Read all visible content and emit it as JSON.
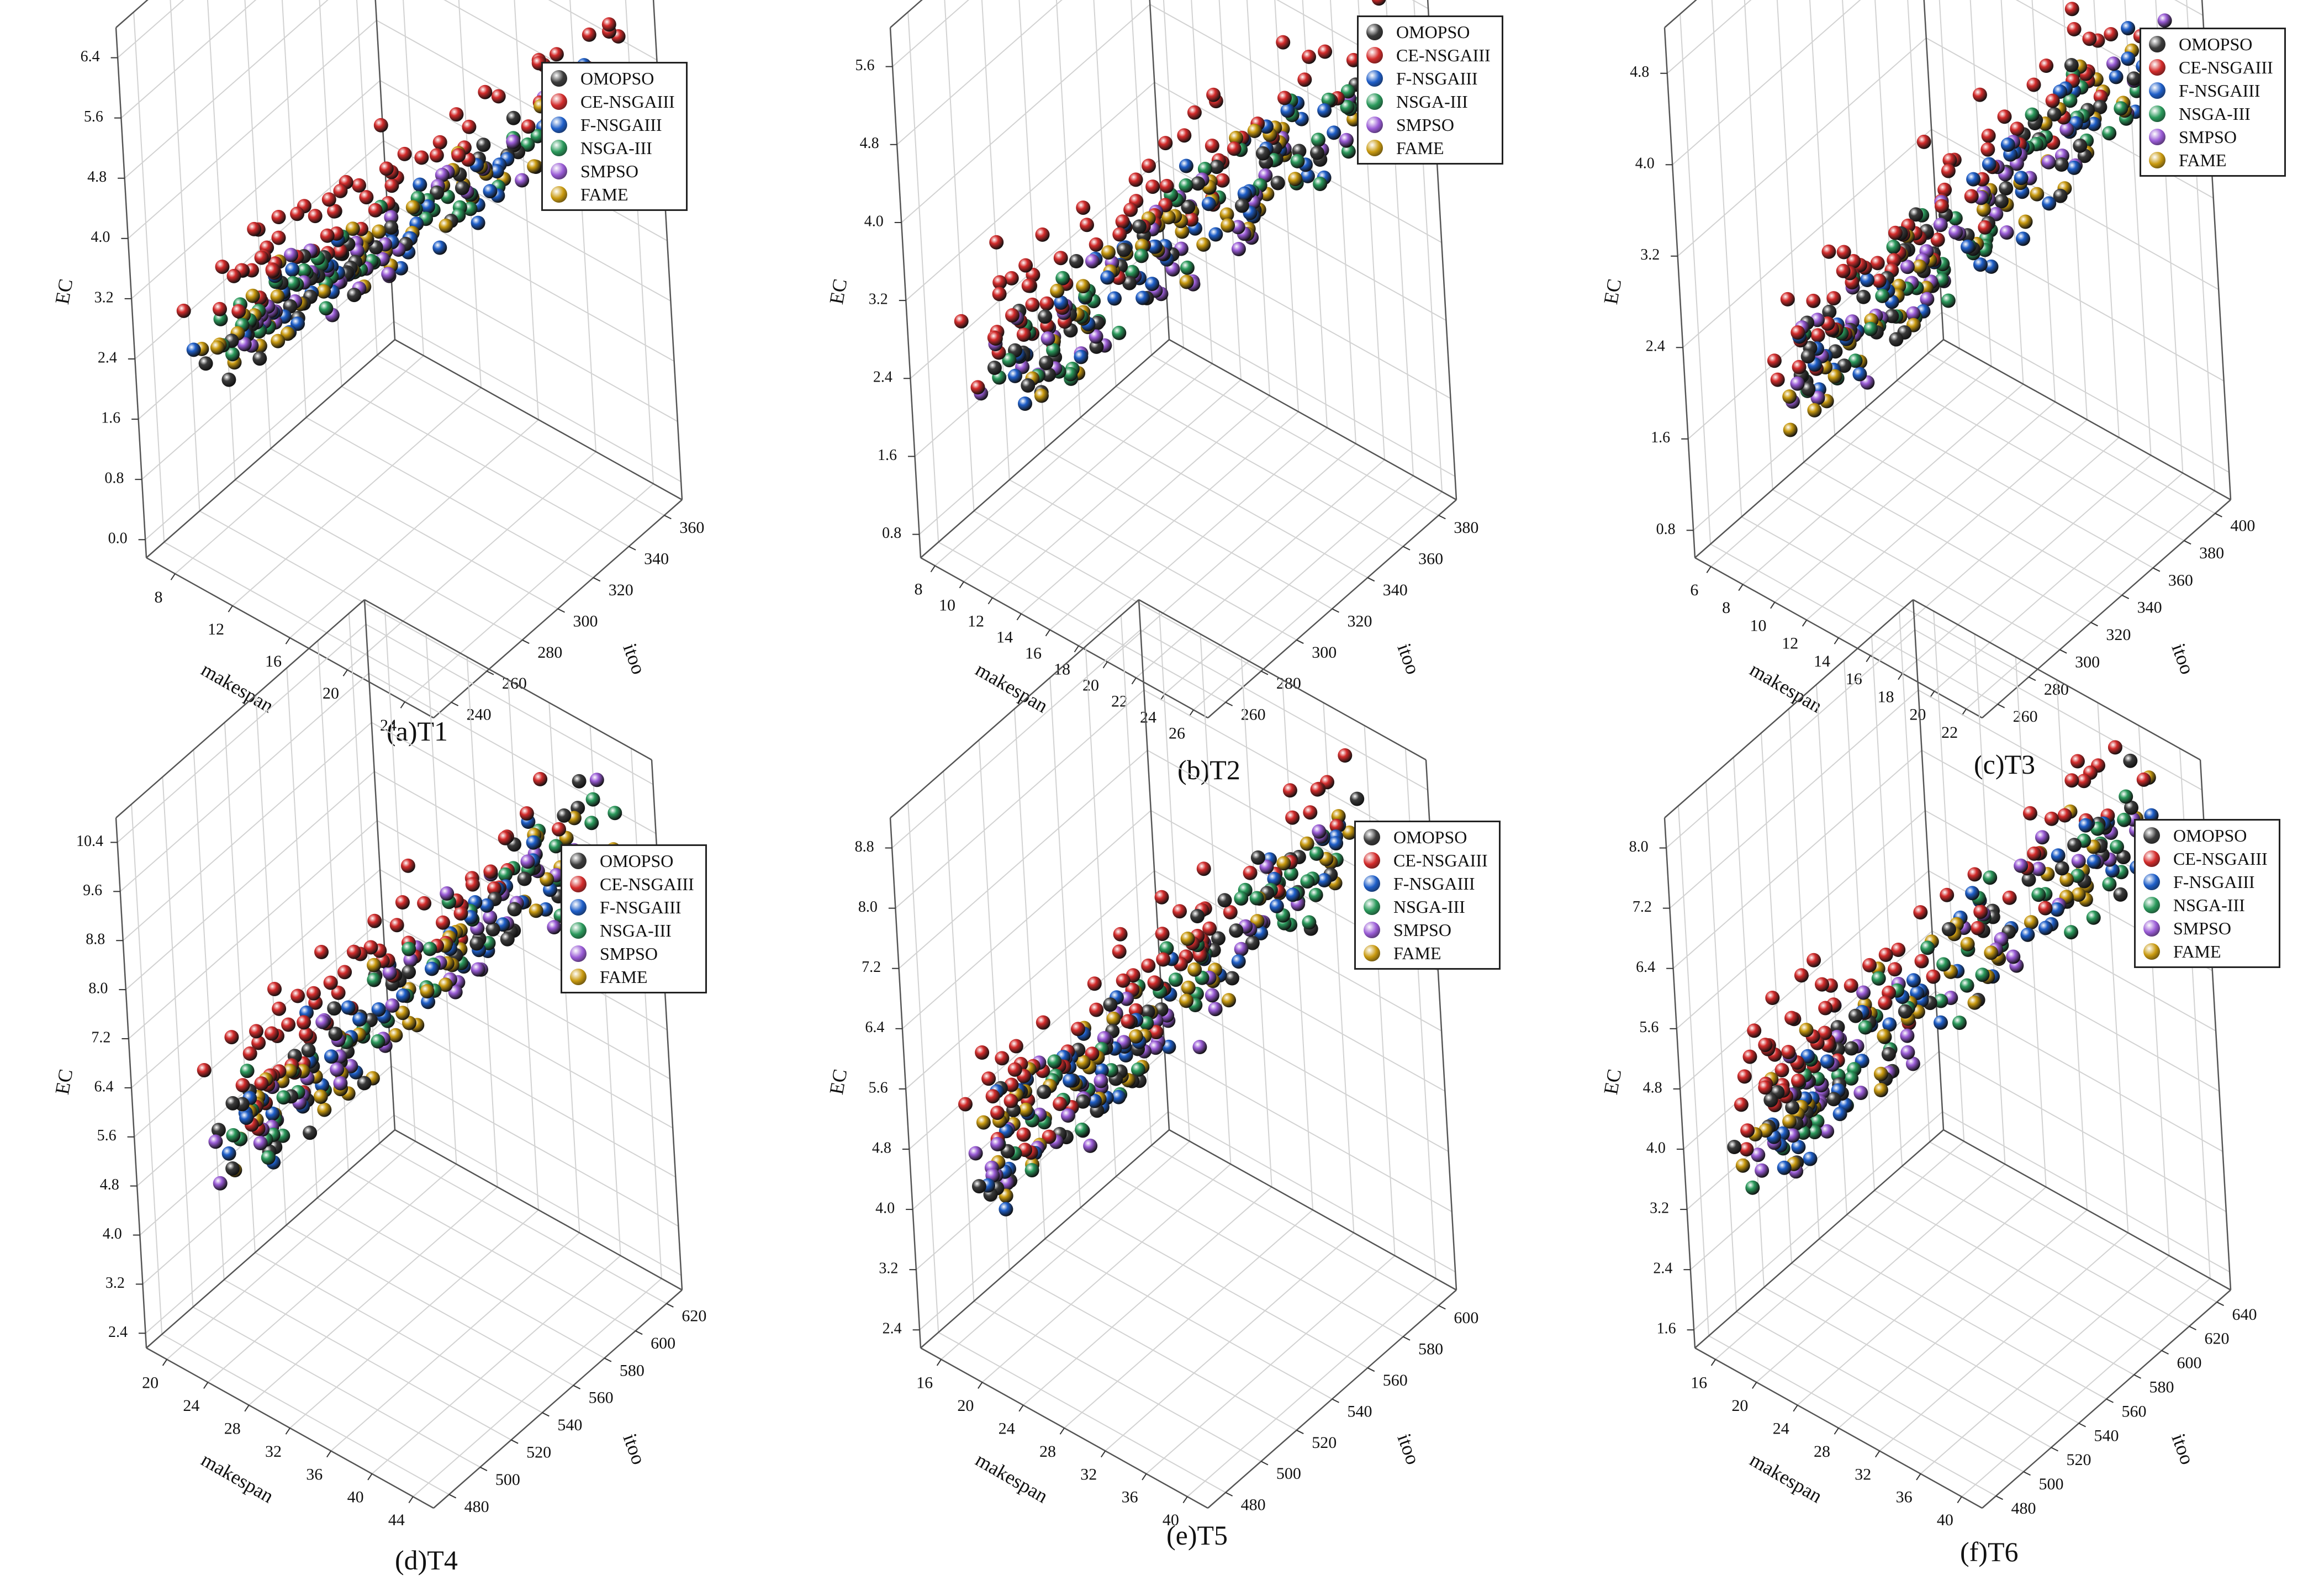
{
  "legend": [
    {
      "name": "OMOPSO",
      "color": "#3c3c3c"
    },
    {
      "name": "CE-NSGAIII",
      "color": "#d42c2c"
    },
    {
      "name": "F-NSGAIII",
      "color": "#1f5fc9"
    },
    {
      "name": "NSGA-III",
      "color": "#2b9a5c"
    },
    {
      "name": "SMPSO",
      "color": "#9a5cd6"
    },
    {
      "name": "FAME",
      "color": "#c99a10"
    }
  ],
  "chart_data": [
    {
      "type": "scatter3d",
      "caption": "(a)T1",
      "xlabel": "makespan",
      "ylabel": "itoo",
      "zlabel": "EC",
      "xticks": [
        "8",
        "12",
        "16",
        "20",
        "24"
      ],
      "yticks": [
        "240",
        "260",
        "280",
        "300",
        "320",
        "340",
        "360"
      ],
      "zticks": [
        "0.0",
        "0.8",
        "1.6",
        "2.4",
        "3.2",
        "4.0",
        "4.8",
        "5.6",
        "6.4"
      ],
      "xlim": [
        7,
        26
      ],
      "ylim": [
        230,
        370
      ],
      "zlim": [
        0,
        6.8
      ],
      "series_start": [
        10,
        345,
        2.6
      ],
      "series_end": [
        24,
        245,
        5.2
      ],
      "spread": [
        1.2,
        14,
        0.35
      ],
      "seed": 11
    },
    {
      "type": "scatter3d",
      "caption": "(b)T2",
      "xlabel": "makespan",
      "ylabel": "itoo",
      "zlabel": "EC",
      "xticks": [
        "8",
        "10",
        "12",
        "14",
        "16",
        "18",
        "20",
        "22",
        "24",
        "26"
      ],
      "yticks": [
        "260",
        "280",
        "300",
        "320",
        "340",
        "360",
        "380"
      ],
      "zticks": [
        "0.8",
        "1.6",
        "2.4",
        "3.2",
        "4.0",
        "4.8",
        "5.6"
      ],
      "xlim": [
        7,
        27
      ],
      "ylim": [
        250,
        390
      ],
      "zlim": [
        0.5,
        6.0
      ],
      "series_start": [
        10,
        365,
        2.2
      ],
      "series_end": [
        25,
        265,
        4.9
      ],
      "spread": [
        1.4,
        16,
        0.4
      ],
      "seed": 23
    },
    {
      "type": "scatter3d",
      "caption": "(c)T3",
      "xlabel": "makespan",
      "ylabel": "itoo",
      "zlabel": "EC",
      "xticks": [
        "6",
        "8",
        "10",
        "12",
        "14",
        "16",
        "18",
        "20",
        "22"
      ],
      "yticks": [
        "260",
        "280",
        "300",
        "320",
        "340",
        "360",
        "380",
        "400"
      ],
      "zticks": [
        "0.8",
        "1.6",
        "2.4",
        "3.2",
        "4.0",
        "4.8"
      ],
      "xlim": [
        5,
        23
      ],
      "ylim": [
        250,
        410
      ],
      "zlim": [
        0.5,
        5.2
      ],
      "series_start": [
        9,
        380,
        2.0
      ],
      "series_end": [
        21,
        270,
        4.4
      ],
      "spread": [
        1.3,
        16,
        0.35
      ],
      "seed": 37
    },
    {
      "type": "scatter3d",
      "caption": "(d)T4",
      "xlabel": "makespan",
      "ylabel": "itoo",
      "zlabel": "EC",
      "xticks": [
        "20",
        "24",
        "28",
        "32",
        "36",
        "40",
        "44"
      ],
      "yticks": [
        "480",
        "500",
        "520",
        "540",
        "560",
        "580",
        "600",
        "620"
      ],
      "zticks": [
        "2.4",
        "3.2",
        "4.0",
        "4.8",
        "5.6",
        "6.4",
        "7.2",
        "8.0",
        "8.8",
        "9.6",
        "10.4"
      ],
      "xlim": [
        19,
        46
      ],
      "ylim": [
        470,
        630
      ],
      "zlim": [
        2.0,
        10.8
      ],
      "series_start": [
        24,
        600,
        5.2
      ],
      "series_end": [
        42,
        490,
        9.6
      ],
      "spread": [
        1.8,
        18,
        0.7
      ],
      "seed": 41
    },
    {
      "type": "scatter3d",
      "caption": "(e)T5",
      "xlabel": "makespan",
      "ylabel": "itoo",
      "zlabel": "EC",
      "xticks": [
        "16",
        "20",
        "24",
        "28",
        "32",
        "36",
        "40"
      ],
      "yticks": [
        "480",
        "500",
        "520",
        "540",
        "560",
        "580",
        "600"
      ],
      "zticks": [
        "2.4",
        "3.2",
        "4.0",
        "4.8",
        "5.6",
        "6.4",
        "7.2",
        "8.0",
        "8.8"
      ],
      "xlim": [
        15,
        41
      ],
      "ylim": [
        470,
        610
      ],
      "zlim": [
        2.0,
        9.2
      ],
      "series_start": [
        19,
        590,
        4.4
      ],
      "series_end": [
        38,
        490,
        8.4
      ],
      "spread": [
        1.8,
        16,
        0.6
      ],
      "seed": 53
    },
    {
      "type": "scatter3d",
      "caption": "(f)T6",
      "xlabel": "makespan",
      "ylabel": "itoo",
      "zlabel": "EC",
      "xticks": [
        "16",
        "20",
        "24",
        "28",
        "32",
        "36",
        "40"
      ],
      "yticks": [
        "480",
        "500",
        "520",
        "540",
        "560",
        "580",
        "600",
        "620",
        "640"
      ],
      "zticks": [
        "1.6",
        "2.4",
        "3.2",
        "4.0",
        "4.8",
        "5.6",
        "6.4",
        "7.2",
        "8.0"
      ],
      "xlim": [
        15,
        41
      ],
      "ylim": [
        470,
        650
      ],
      "zlim": [
        1.2,
        8.4
      ],
      "series_start": [
        19,
        625,
        4.0
      ],
      "series_end": [
        38,
        495,
        7.8
      ],
      "spread": [
        1.8,
        18,
        0.6
      ],
      "seed": 67
    }
  ]
}
